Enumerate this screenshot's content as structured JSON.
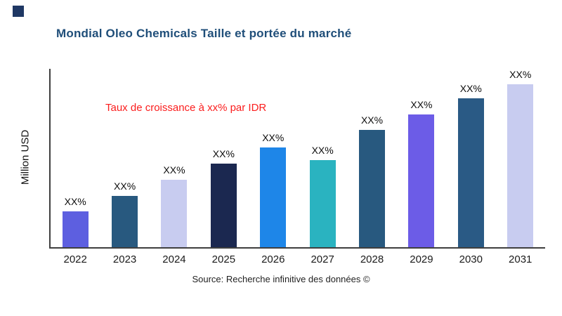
{
  "page": {
    "title": "Mondial Oleo Chemicals Taille et portée du marché",
    "title_color": "#1F4E79",
    "corner_square_color": "#1F3864",
    "annotation": "Taux de croissance à xx% par IDR",
    "annotation_color": "#FB1D1D",
    "source": "Source: Recherche infinitive des données ©",
    "ylabel": "Million USD"
  },
  "chart_data": {
    "type": "bar",
    "title": "Mondial Oleo Chemicals Taille et portée du marché",
    "xlabel": "",
    "ylabel": "Million USD",
    "ylim": [
      0,
      250
    ],
    "grid": false,
    "legend": "none",
    "categories": [
      "2022",
      "2023",
      "2024",
      "2025",
      "2026",
      "2027",
      "2028",
      "2029",
      "2030",
      "2031"
    ],
    "values": [
      50,
      72,
      94,
      117,
      140,
      122,
      164,
      186,
      209,
      232
    ],
    "bar_labels": [
      "XX%",
      "XX%",
      "XX%",
      "XX%",
      "XX%",
      "XX%",
      "XX%",
      "XX%",
      "XX%",
      "XX%"
    ],
    "bar_colors": [
      "#5D5FE0",
      "#28597F",
      "#C8CCF0",
      "#1B2850",
      "#1E86E8",
      "#2AB3C0",
      "#28597F",
      "#6C5CE7",
      "#2A5A85",
      "#C8CCF0"
    ],
    "annotation": "Taux de croissance à xx% par IDR",
    "source": "Source: Recherche infinitive des données ©"
  }
}
